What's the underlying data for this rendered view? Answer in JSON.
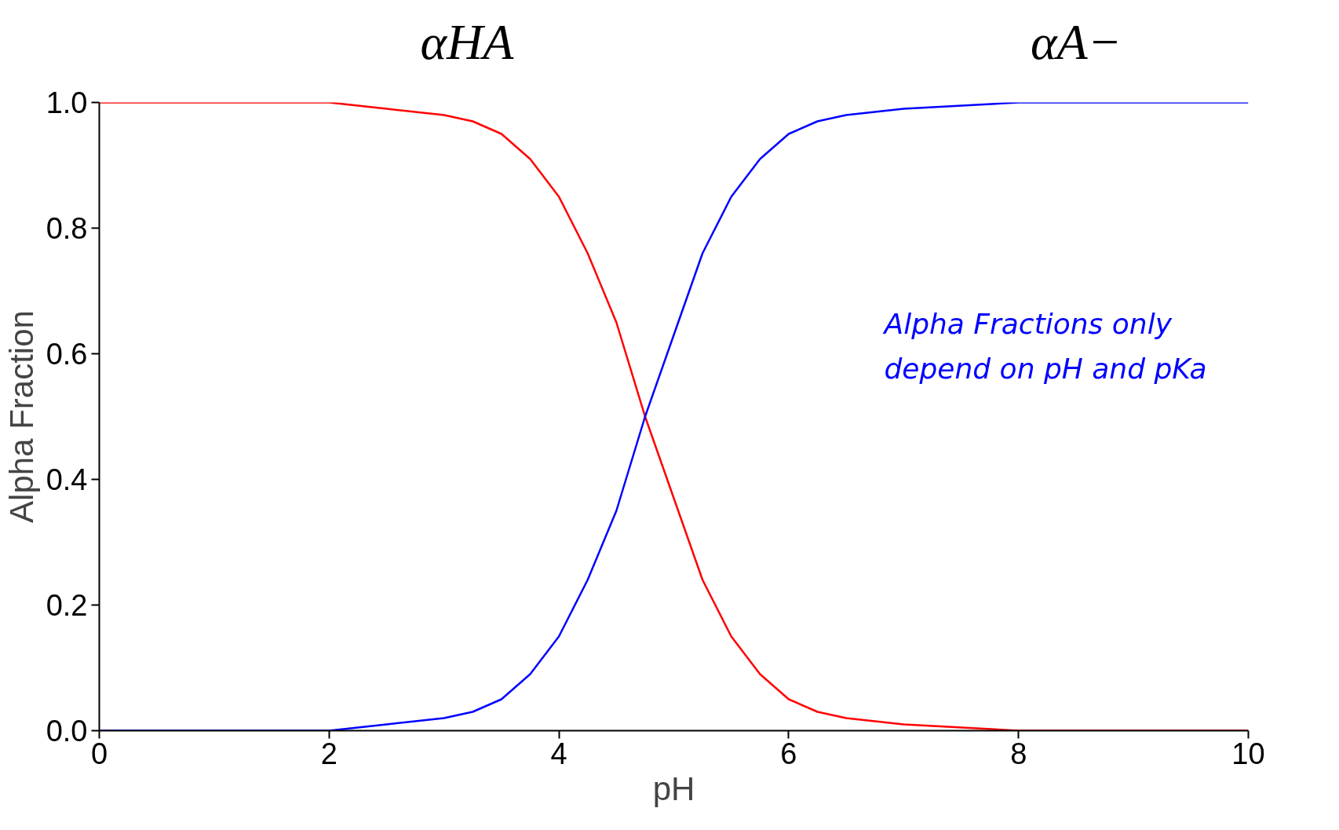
{
  "chart_data": {
    "type": "line",
    "xlabel": "pH",
    "ylabel": "Alpha Fraction",
    "x": [
      0,
      1,
      2,
      2.5,
      3,
      3.25,
      3.5,
      3.75,
      4,
      4.25,
      4.5,
      4.75,
      5,
      5.25,
      5.5,
      5.75,
      6,
      6.25,
      6.5,
      7,
      8,
      10
    ],
    "series": [
      {
        "name": "αHA",
        "color": "#ff0000",
        "values": [
          1.0,
          1.0,
          1.0,
          0.99,
          0.98,
          0.97,
          0.95,
          0.91,
          0.85,
          0.76,
          0.65,
          0.5,
          0.37,
          0.24,
          0.15,
          0.09,
          0.05,
          0.03,
          0.02,
          0.01,
          0.0,
          0.0
        ]
      },
      {
        "name": "αA−",
        "color": "#0000ff",
        "values": [
          0.0,
          0.0,
          0.0,
          0.01,
          0.02,
          0.03,
          0.05,
          0.09,
          0.15,
          0.24,
          0.35,
          0.5,
          0.63,
          0.76,
          0.85,
          0.91,
          0.95,
          0.97,
          0.98,
          0.99,
          1.0,
          1.0
        ]
      }
    ],
    "annotations": [
      "Alpha Fractions only depend on pH and pKa"
    ],
    "xlim": [
      0,
      10
    ],
    "xticks": [
      0,
      2,
      4,
      6,
      8,
      10
    ],
    "ylim": [
      0,
      1
    ],
    "yticks": [
      {
        "value": 0,
        "label": "0.0"
      },
      {
        "value": 0.2,
        "label": "0.2"
      },
      {
        "value": 0.4,
        "label": "0.4"
      },
      {
        "value": 0.6,
        "label": "0.6"
      },
      {
        "value": 0.8,
        "label": "0.8"
      },
      {
        "value": 1,
        "label": "1.0"
      }
    ],
    "grid": false,
    "marker": "none",
    "line_style": "solid"
  }
}
